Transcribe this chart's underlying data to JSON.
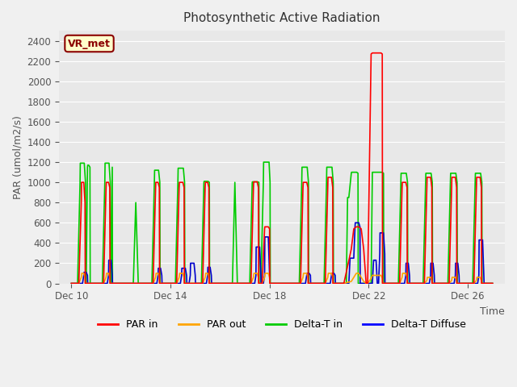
{
  "title": "Photosynthetic Active Radiation",
  "ylabel": "PAR (umol/m2/s)",
  "xlabel": "Time",
  "xlim_days": [
    9.5,
    27.5
  ],
  "ylim": [
    0,
    2500
  ],
  "yticks": [
    0,
    200,
    400,
    600,
    800,
    1000,
    1200,
    1400,
    1600,
    1800,
    2000,
    2200,
    2400
  ],
  "xtick_positions": [
    10,
    14,
    18,
    22,
    26
  ],
  "xtick_labels": [
    "Dec 10",
    "Dec 14",
    "Dec 18",
    "Dec 22",
    "Dec 26"
  ],
  "bg_color": "#e8e8e8",
  "plot_bg_color": "#e8e8e8",
  "grid_color": "#ffffff",
  "annotation_text": "VR_met",
  "annotation_color": "#8b0000",
  "annotation_bg": "#ffffcc",
  "legend_labels": [
    "PAR in",
    "PAR out",
    "Delta-T in",
    "Delta-T Diffuse"
  ],
  "legend_colors": [
    "#ff0000",
    "#ffa500",
    "#00cc00",
    "#0000ff"
  ],
  "line_colors": {
    "PAR_in": "#ff0000",
    "PAR_out": "#ffa500",
    "Delta_T_in": "#00cc00",
    "Delta_T_Diffuse": "#0000cd"
  },
  "series": {
    "PAR_in": {
      "x": [
        10.0,
        10.3,
        10.4,
        10.41,
        10.5,
        10.55,
        10.56,
        11.3,
        11.4,
        11.41,
        11.5,
        11.55,
        11.56,
        13.3,
        13.4,
        13.41,
        13.5,
        13.55,
        13.56,
        14.25,
        14.35,
        14.36,
        14.5,
        14.55,
        14.56,
        15.3,
        15.4,
        15.41,
        15.5,
        15.55,
        15.56,
        17.25,
        17.35,
        17.36,
        17.5,
        17.55,
        17.56,
        17.7,
        17.8,
        17.81,
        17.95,
        18.0,
        18.01,
        19.25,
        19.35,
        19.36,
        19.5,
        19.55,
        19.56,
        20.25,
        20.35,
        20.36,
        20.5,
        20.55,
        20.56,
        21.0,
        21.3,
        21.4,
        21.5,
        21.6,
        21.7,
        21.8,
        21.9,
        21.95,
        21.96,
        22.1,
        22.15,
        22.5,
        22.55,
        22.56,
        23.25,
        23.35,
        23.36,
        23.5,
        23.55,
        23.56,
        24.25,
        24.35,
        24.36,
        24.5,
        24.55,
        24.56,
        25.25,
        25.35,
        25.36,
        25.5,
        25.55,
        25.56,
        26.25,
        26.35,
        26.36,
        26.5,
        26.55,
        26.56,
        27.0
      ],
      "y": [
        0,
        0,
        800,
        1000,
        1000,
        800,
        0,
        0,
        950,
        1000,
        1000,
        950,
        0,
        0,
        950,
        1000,
        1000,
        950,
        0,
        0,
        950,
        1000,
        1000,
        950,
        0,
        0,
        950,
        1000,
        1000,
        950,
        0,
        0,
        950,
        1005,
        1005,
        950,
        0,
        0,
        540,
        560,
        560,
        540,
        0,
        0,
        950,
        1000,
        1000,
        950,
        0,
        0,
        950,
        1050,
        1050,
        950,
        0,
        0,
        340,
        540,
        560,
        560,
        540,
        340,
        0,
        0,
        0,
        2270,
        2280,
        2280,
        2270,
        0,
        0,
        950,
        1000,
        1000,
        950,
        0,
        0,
        950,
        1050,
        1050,
        950,
        0,
        0,
        950,
        1050,
        1050,
        950,
        0,
        0,
        950,
        1050,
        1050,
        950,
        0,
        0
      ]
    },
    "PAR_out": {
      "x": [
        10.0,
        10.3,
        10.4,
        10.42,
        10.5,
        10.55,
        10.56,
        11.3,
        11.4,
        11.42,
        11.5,
        11.55,
        11.56,
        13.3,
        13.4,
        13.42,
        13.5,
        13.55,
        13.56,
        14.25,
        14.35,
        14.37,
        14.5,
        14.55,
        14.56,
        15.3,
        15.4,
        15.42,
        15.5,
        15.55,
        15.56,
        17.25,
        17.35,
        17.37,
        17.5,
        17.55,
        17.56,
        17.7,
        17.8,
        17.82,
        17.95,
        18.0,
        18.01,
        19.25,
        19.35,
        19.37,
        19.5,
        19.55,
        19.56,
        20.25,
        20.35,
        20.37,
        20.5,
        20.55,
        20.56,
        21.0,
        21.3,
        21.4,
        21.5,
        21.6,
        21.7,
        21.8,
        21.9,
        21.95,
        21.96,
        22.1,
        22.15,
        22.5,
        22.55,
        22.56,
        23.25,
        23.35,
        23.37,
        23.5,
        23.55,
        23.56,
        24.25,
        24.35,
        24.37,
        24.5,
        24.55,
        24.56,
        25.25,
        25.35,
        25.37,
        25.5,
        25.55,
        25.56,
        26.25,
        26.35,
        26.37,
        26.5,
        26.55,
        26.56,
        27.0
      ],
      "y": [
        0,
        0,
        60,
        100,
        100,
        60,
        0,
        0,
        60,
        100,
        100,
        60,
        0,
        0,
        60,
        100,
        100,
        60,
        0,
        0,
        60,
        100,
        100,
        60,
        0,
        0,
        60,
        100,
        100,
        60,
        0,
        0,
        60,
        100,
        100,
        60,
        0,
        0,
        60,
        100,
        100,
        60,
        0,
        0,
        60,
        100,
        100,
        60,
        0,
        0,
        60,
        100,
        100,
        60,
        0,
        0,
        20,
        60,
        100,
        100,
        60,
        20,
        0,
        0,
        0,
        50,
        80,
        80,
        50,
        0,
        0,
        60,
        100,
        100,
        60,
        0,
        0,
        30,
        60,
        60,
        30,
        0,
        0,
        30,
        60,
        60,
        30,
        0,
        0,
        30,
        60,
        60,
        30,
        0,
        0
      ]
    },
    "Delta_T_in": {
      "x": [
        10.0,
        10.25,
        10.35,
        10.36,
        10.52,
        10.57,
        10.58,
        10.6,
        10.65,
        10.66,
        10.7,
        10.75,
        10.76,
        11.0,
        11.25,
        11.35,
        11.36,
        11.52,
        11.57,
        11.58,
        11.6,
        11.65,
        11.66,
        12.5,
        12.6,
        12.7,
        13.25,
        13.35,
        13.36,
        13.52,
        13.57,
        13.58,
        14.2,
        14.3,
        14.31,
        14.52,
        14.57,
        14.58,
        15.25,
        15.35,
        15.36,
        15.52,
        15.57,
        15.58,
        16.5,
        16.6,
        16.7,
        17.2,
        17.3,
        17.31,
        17.52,
        17.57,
        17.58,
        17.65,
        17.75,
        17.76,
        17.98,
        18.02,
        18.03,
        19.2,
        19.3,
        19.31,
        19.52,
        19.57,
        19.58,
        20.2,
        20.3,
        20.31,
        20.52,
        20.57,
        20.58,
        21.0,
        21.1,
        21.15,
        21.2,
        21.3,
        21.31,
        21.52,
        21.57,
        21.58,
        22.0,
        22.1,
        22.15,
        22.2,
        22.55,
        22.6,
        22.61,
        23.2,
        23.3,
        23.31,
        23.52,
        23.57,
        23.58,
        24.2,
        24.3,
        24.31,
        24.52,
        24.57,
        24.58,
        25.2,
        25.3,
        25.31,
        25.52,
        25.57,
        25.58,
        26.2,
        26.3,
        26.31,
        26.52,
        26.57,
        26.58,
        27.0
      ],
      "y": [
        0,
        0,
        1000,
        1190,
        1190,
        1000,
        0,
        0,
        1150,
        1170,
        1170,
        1150,
        0,
        0,
        0,
        1000,
        1190,
        1190,
        1000,
        0,
        0,
        1150,
        0,
        0,
        800,
        0,
        0,
        1000,
        1120,
        1120,
        1000,
        0,
        0,
        1000,
        1140,
        1140,
        1000,
        0,
        0,
        1000,
        1010,
        1010,
        1000,
        0,
        0,
        1000,
        0,
        0,
        1000,
        1005,
        1005,
        1000,
        0,
        0,
        1000,
        1200,
        1200,
        1000,
        0,
        0,
        1000,
        1150,
        1150,
        1000,
        0,
        0,
        1000,
        1150,
        1150,
        1000,
        0,
        0,
        0,
        850,
        850,
        1090,
        1100,
        1100,
        1090,
        0,
        0,
        0,
        1100,
        1100,
        1100,
        1090,
        0,
        0,
        1000,
        1090,
        1090,
        1000,
        0,
        0,
        1000,
        1090,
        1090,
        1000,
        0,
        0,
        1000,
        1090,
        1090,
        1000,
        0,
        0,
        1000,
        1090,
        1090,
        1000,
        0,
        0
      ]
    },
    "Delta_T_Diffuse": {
      "x": [
        10.0,
        10.45,
        10.5,
        10.51,
        10.6,
        10.65,
        10.66,
        11.45,
        11.5,
        11.51,
        11.6,
        11.65,
        11.66,
        13.45,
        13.5,
        13.51,
        13.6,
        13.65,
        13.66,
        14.4,
        14.45,
        14.46,
        14.6,
        14.65,
        14.66,
        14.75,
        14.8,
        14.81,
        14.95,
        15.0,
        15.01,
        15.45,
        15.5,
        15.51,
        15.6,
        15.65,
        15.66,
        17.4,
        17.45,
        17.46,
        17.6,
        17.65,
        17.66,
        17.75,
        17.8,
        17.81,
        17.95,
        18.0,
        18.01,
        19.45,
        19.5,
        19.51,
        19.6,
        19.65,
        19.66,
        20.45,
        20.5,
        20.51,
        20.6,
        20.65,
        20.66,
        21.0,
        21.2,
        21.25,
        21.4,
        21.45,
        21.46,
        21.6,
        21.65,
        21.66,
        22.0,
        22.15,
        22.2,
        22.21,
        22.3,
        22.35,
        22.36,
        22.4,
        22.45,
        22.46,
        22.6,
        22.65,
        22.66,
        23.45,
        23.5,
        23.51,
        23.6,
        23.65,
        23.66,
        24.45,
        24.5,
        24.51,
        24.6,
        24.65,
        24.66,
        25.45,
        25.5,
        25.51,
        25.6,
        25.65,
        25.66,
        26.0,
        26.4,
        26.45,
        26.46,
        26.6,
        26.65,
        26.66,
        27.0
      ],
      "y": [
        0,
        0,
        80,
        110,
        110,
        80,
        0,
        0,
        80,
        230,
        230,
        80,
        0,
        0,
        80,
        150,
        150,
        80,
        0,
        0,
        80,
        150,
        150,
        80,
        0,
        0,
        80,
        200,
        200,
        80,
        0,
        0,
        80,
        160,
        160,
        80,
        0,
        0,
        80,
        360,
        360,
        80,
        0,
        0,
        80,
        460,
        460,
        80,
        0,
        0,
        80,
        100,
        100,
        80,
        0,
        0,
        80,
        100,
        100,
        80,
        0,
        0,
        0,
        250,
        250,
        560,
        600,
        600,
        560,
        0,
        0,
        0,
        230,
        230,
        230,
        0,
        0,
        0,
        295,
        500,
        500,
        295,
        0,
        0,
        80,
        200,
        200,
        80,
        0,
        0,
        80,
        200,
        200,
        80,
        0,
        0,
        80,
        200,
        200,
        80,
        0,
        0,
        0,
        80,
        430,
        430,
        80,
        0,
        0
      ]
    }
  }
}
